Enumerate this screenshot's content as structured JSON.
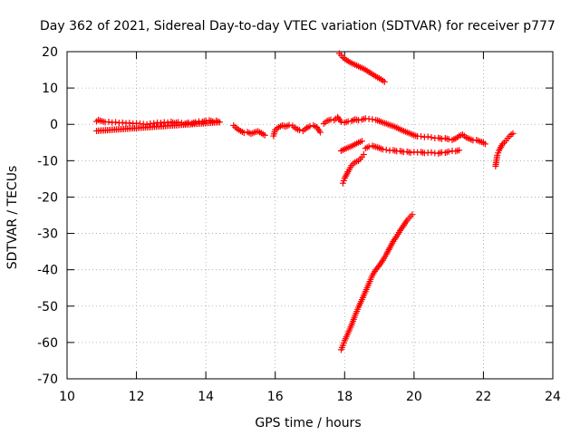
{
  "chart_data": {
    "type": "scatter",
    "title": "Day 362 of 2021, Sidereal Day-to-day VTEC variation (SDTVAR) for receiver p777",
    "xlabel": "GPS time / hours",
    "ylabel": "SDTVAR / TECUs",
    "xlim": [
      10,
      24
    ],
    "ylim": [
      -70,
      20
    ],
    "xticks": [
      10,
      12,
      14,
      16,
      18,
      20,
      22,
      24
    ],
    "yticks": [
      -70,
      -60,
      -50,
      -40,
      -30,
      -20,
      -10,
      0,
      10,
      20
    ],
    "grid": true,
    "marker": "+",
    "color": "#ff0000",
    "series": [
      {
        "name": "arc-1",
        "points": [
          [
            10.85,
            0.8
          ],
          [
            10.9,
            1.2
          ],
          [
            11.0,
            0.9
          ],
          [
            11.1,
            0.6
          ],
          [
            11.2,
            0.7
          ],
          [
            11.3,
            0.5
          ],
          [
            11.4,
            0.6
          ],
          [
            11.5,
            0.4
          ],
          [
            11.6,
            0.5
          ],
          [
            11.7,
            0.3
          ],
          [
            11.8,
            0.4
          ],
          [
            11.9,
            0.2
          ],
          [
            12.0,
            0.3
          ],
          [
            12.1,
            0.2
          ],
          [
            12.2,
            0.1
          ],
          [
            12.3,
            0.0
          ],
          [
            12.4,
            0.2
          ],
          [
            12.5,
            0.3
          ],
          [
            12.6,
            0.5
          ],
          [
            12.7,
            0.4
          ],
          [
            12.8,
            0.6
          ],
          [
            12.9,
            0.5
          ],
          [
            13.0,
            0.7
          ],
          [
            13.1,
            0.3
          ],
          [
            13.2,
            0.6
          ],
          [
            13.3,
            0.4
          ],
          [
            13.4,
            0.2
          ],
          [
            13.5,
            0.5
          ],
          [
            13.6,
            0.3
          ],
          [
            13.7,
            0.6
          ],
          [
            13.8,
            0.8
          ],
          [
            13.9,
            0.7
          ],
          [
            14.0,
            1.0
          ],
          [
            14.1,
            1.1
          ],
          [
            14.2,
            0.8
          ],
          [
            14.3,
            1.0
          ],
          [
            14.4,
            0.6
          ],
          [
            10.85,
            -1.8
          ]
        ]
      },
      {
        "name": "arc-2",
        "points": [
          [
            14.8,
            -0.3
          ],
          [
            14.9,
            -1.2
          ],
          [
            15.0,
            -1.8
          ],
          [
            15.1,
            -2.3
          ],
          [
            15.2,
            -2.1
          ],
          [
            15.3,
            -2.6
          ],
          [
            15.4,
            -2.2
          ],
          [
            15.5,
            -1.9
          ],
          [
            15.6,
            -2.4
          ],
          [
            15.7,
            -3.0
          ]
        ]
      },
      {
        "name": "arc-3",
        "points": [
          [
            15.95,
            -3.2
          ],
          [
            16.0,
            -1.5
          ],
          [
            16.1,
            -0.8
          ],
          [
            16.2,
            -0.3
          ],
          [
            16.3,
            -0.6
          ],
          [
            16.4,
            -0.2
          ],
          [
            16.5,
            -0.4
          ],
          [
            16.6,
            -1.2
          ],
          [
            16.7,
            -1.6
          ],
          [
            16.8,
            -1.8
          ],
          [
            16.9,
            -1.0
          ],
          [
            17.0,
            -0.5
          ],
          [
            17.1,
            -0.3
          ],
          [
            17.2,
            -0.8
          ],
          [
            17.3,
            -2.2
          ]
        ]
      },
      {
        "name": "arc-4",
        "points": [
          [
            17.4,
            0.2
          ],
          [
            17.5,
            1.0
          ],
          [
            17.6,
            1.3
          ],
          [
            17.7,
            1.1
          ],
          [
            17.8,
            2.0
          ],
          [
            17.9,
            0.7
          ],
          [
            18.0,
            0.5
          ],
          [
            18.1,
            0.8
          ],
          [
            18.2,
            0.9
          ],
          [
            18.3,
            1.4
          ],
          [
            18.4,
            1.1
          ],
          [
            18.5,
            1.3
          ],
          [
            18.6,
            1.6
          ],
          [
            18.7,
            1.5
          ],
          [
            18.8,
            1.4
          ],
          [
            18.9,
            1.2
          ],
          [
            19.0,
            0.9
          ],
          [
            19.1,
            0.5
          ],
          [
            19.2,
            0.2
          ],
          [
            19.3,
            -0.2
          ],
          [
            19.4,
            -0.5
          ],
          [
            19.5,
            -0.9
          ],
          [
            19.6,
            -1.4
          ],
          [
            19.7,
            -1.8
          ],
          [
            19.8,
            -2.2
          ],
          [
            19.9,
            -2.6
          ],
          [
            20.0,
            -3.0
          ],
          [
            20.1,
            -3.3
          ],
          [
            20.2,
            -3.3
          ],
          [
            20.3,
            -3.5
          ],
          [
            20.4,
            -3.4
          ],
          [
            20.5,
            -3.6
          ],
          [
            20.6,
            -3.8
          ],
          [
            20.7,
            -3.7
          ],
          [
            20.8,
            -4.0
          ],
          [
            20.9,
            -3.8
          ],
          [
            21.0,
            -4.1
          ],
          [
            21.1,
            -4.3
          ],
          [
            21.2,
            -3.9
          ],
          [
            21.3,
            -3.2
          ],
          [
            21.4,
            -2.8
          ],
          [
            21.5,
            -3.6
          ],
          [
            21.6,
            -4.0
          ],
          [
            21.7,
            -4.4
          ],
          [
            21.8,
            -4.3
          ],
          [
            21.9,
            -4.7
          ],
          [
            22.0,
            -5.0
          ],
          [
            22.05,
            -5.4
          ]
        ]
      },
      {
        "name": "arc-5",
        "points": [
          [
            22.35,
            -11.5
          ],
          [
            22.4,
            -8.5
          ],
          [
            22.45,
            -7.2
          ],
          [
            22.5,
            -6.3
          ],
          [
            22.55,
            -5.4
          ],
          [
            22.6,
            -5.0
          ],
          [
            22.65,
            -4.5
          ],
          [
            22.7,
            -3.8
          ],
          [
            22.75,
            -3.3
          ],
          [
            22.8,
            -2.8
          ],
          [
            22.85,
            -2.5
          ]
        ]
      },
      {
        "name": "arc-6",
        "points": [
          [
            17.85,
            19.5
          ],
          [
            17.95,
            18.4
          ],
          [
            18.05,
            17.7
          ],
          [
            18.15,
            17.1
          ],
          [
            18.25,
            16.6
          ],
          [
            18.35,
            16.2
          ],
          [
            18.45,
            15.7
          ],
          [
            18.55,
            15.3
          ],
          [
            18.65,
            14.7
          ],
          [
            18.75,
            14.1
          ],
          [
            18.85,
            13.5
          ],
          [
            18.95,
            12.9
          ],
          [
            19.05,
            12.4
          ],
          [
            19.15,
            11.7
          ]
        ]
      },
      {
        "name": "arc-7",
        "points": [
          [
            17.9,
            -7.3
          ],
          [
            18.0,
            -6.8
          ],
          [
            18.1,
            -6.4
          ],
          [
            18.2,
            -6.0
          ],
          [
            18.3,
            -5.5
          ],
          [
            18.4,
            -5.0
          ],
          [
            18.5,
            -4.6
          ]
        ]
      },
      {
        "name": "arc-8",
        "points": [
          [
            18.6,
            -6.6
          ],
          [
            18.7,
            -6.1
          ],
          [
            18.8,
            -5.9
          ],
          [
            18.9,
            -6.2
          ],
          [
            19.0,
            -6.5
          ],
          [
            19.1,
            -6.9
          ],
          [
            19.2,
            -7.0
          ],
          [
            19.3,
            -7.2
          ],
          [
            19.4,
            -7.1
          ],
          [
            19.5,
            -7.4
          ],
          [
            19.6,
            -7.3
          ],
          [
            19.7,
            -7.6
          ],
          [
            19.8,
            -7.5
          ],
          [
            19.9,
            -7.8
          ],
          [
            20.0,
            -7.6
          ],
          [
            20.1,
            -7.7
          ],
          [
            20.2,
            -7.6
          ],
          [
            20.3,
            -7.9
          ],
          [
            20.4,
            -7.8
          ],
          [
            20.5,
            -7.7
          ],
          [
            20.6,
            -7.9
          ],
          [
            20.7,
            -8.0
          ],
          [
            20.8,
            -7.7
          ],
          [
            20.9,
            -7.8
          ],
          [
            21.0,
            -7.5
          ],
          [
            21.1,
            -7.3
          ],
          [
            21.2,
            -7.4
          ],
          [
            21.3,
            -7.1
          ]
        ]
      },
      {
        "name": "arc-9",
        "points": [
          [
            17.95,
            -16.2
          ],
          [
            18.0,
            -14.8
          ],
          [
            18.1,
            -13.0
          ],
          [
            18.2,
            -11.3
          ],
          [
            18.3,
            -10.4
          ],
          [
            18.4,
            -10.0
          ],
          [
            18.5,
            -9.0
          ],
          [
            18.55,
            -8.3
          ]
        ]
      },
      {
        "name": "arc-10",
        "points": [
          [
            17.9,
            -62.0
          ],
          [
            17.95,
            -60.8
          ],
          [
            18.0,
            -59.5
          ],
          [
            18.1,
            -57.4
          ],
          [
            18.2,
            -55.2
          ],
          [
            18.3,
            -52.6
          ],
          [
            18.4,
            -50.3
          ],
          [
            18.5,
            -48.2
          ],
          [
            18.6,
            -46.0
          ],
          [
            18.7,
            -43.8
          ],
          [
            18.8,
            -41.5
          ],
          [
            18.9,
            -40.0
          ],
          [
            19.0,
            -38.8
          ],
          [
            19.1,
            -37.4
          ],
          [
            19.2,
            -35.8
          ],
          [
            19.3,
            -34.0
          ],
          [
            19.4,
            -32.2
          ],
          [
            19.5,
            -30.8
          ],
          [
            19.6,
            -29.2
          ],
          [
            19.7,
            -27.8
          ],
          [
            19.8,
            -26.4
          ],
          [
            19.9,
            -25.3
          ],
          [
            19.95,
            -24.8
          ]
        ]
      }
    ]
  }
}
